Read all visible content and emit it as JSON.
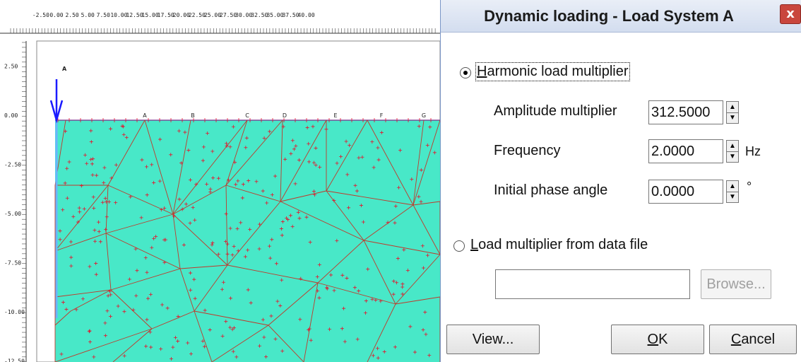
{
  "dialog": {
    "title": "Dynamic loading - Load System A",
    "close_glyph": "x",
    "harmonic_radio": {
      "label_underlined": "H",
      "label_rest": "armonic load multiplier",
      "selected": true
    },
    "fields": [
      {
        "label": "Amplitude multiplier",
        "value": "312.5000",
        "unit": ""
      },
      {
        "label": "Frequency",
        "value": "2.0000",
        "unit": "Hz"
      },
      {
        "label": "Initial phase angle",
        "value": "0.0000",
        "unit": "°"
      }
    ],
    "file_radio": {
      "label_underlined": "L",
      "label_rest": "oad multiplier from data file",
      "selected": false
    },
    "file_path": "",
    "browse_label": "Browse...",
    "view_label": "View...",
    "ok_underlined": "O",
    "ok_rest": "K",
    "cancel_underlined": "C",
    "cancel_rest": "ancel"
  },
  "canvas": {
    "x_ticks": [
      "-2.50",
      "0.00",
      "2.50",
      "5.00",
      "7.50",
      "10.00",
      "12.50",
      "15.00",
      "17.50",
      "20.00",
      "22.50",
      "25.00",
      "27.50",
      "30.00",
      "32.50",
      "35.00",
      "37.50",
      "40.00"
    ],
    "y_ticks": [
      "2.50",
      "0.00",
      "-2.50",
      "-5.00",
      "-7.50",
      "-10.00",
      "-12.50"
    ],
    "point_labels": [
      "A",
      "B",
      "C",
      "D",
      "E",
      "F",
      "G"
    ],
    "load_label": "A",
    "colors": {
      "soil": "#48e8c8",
      "mesh": "#c0392b",
      "load": "#1a1aff",
      "node": "#e8102a"
    }
  }
}
